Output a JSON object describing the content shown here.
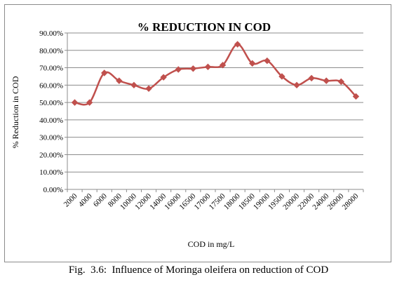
{
  "caption": "Fig.  3.6:  Influence of Moringa oleifera on reduction of COD",
  "chart_data": {
    "type": "line",
    "title": "% REDUCTION IN COD",
    "xlabel": "COD in mg/L",
    "ylabel": "% Reduction in COD",
    "categories": [
      "2000",
      "4000",
      "6000",
      "8000",
      "10000",
      "12000",
      "14000",
      "16000",
      "16500",
      "17000",
      "17500",
      "18000",
      "18500",
      "19000",
      "19500",
      "20000",
      "22000",
      "24000",
      "26000",
      "28000"
    ],
    "series": [
      {
        "values": [
          50.0,
          50.0,
          67.0,
          62.5,
          60.0,
          58.0,
          64.5,
          69.0,
          69.5,
          70.5,
          71.5,
          83.5,
          72.5,
          74.0,
          65.0,
          60.0,
          64.0,
          62.5,
          62.0,
          53.5
        ]
      }
    ],
    "ylim": [
      0,
      90
    ],
    "yticks": [
      "0.00%",
      "10.00%",
      "20.00%",
      "30.00%",
      "40.00%",
      "50.00%",
      "60.00%",
      "70.00%",
      "80.00%",
      "90.00%"
    ],
    "grid": true,
    "legend": "none",
    "colors": {
      "line": "#c0504d",
      "grid": "#8c8c8c",
      "axis": "#8c8c8c"
    }
  }
}
